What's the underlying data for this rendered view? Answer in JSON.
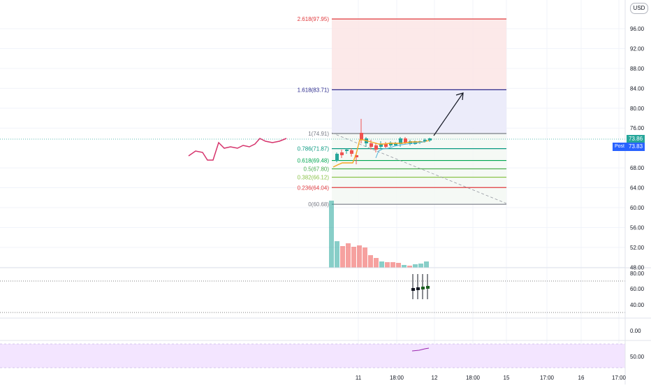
{
  "currency_button": "USD",
  "price_axis": {
    "ticks": [
      {
        "label": "96.00",
        "price": 96
      },
      {
        "label": "92.00",
        "price": 92
      },
      {
        "label": "88.00",
        "price": 88
      },
      {
        "label": "84.00",
        "price": 84
      },
      {
        "label": "80.00",
        "price": 80
      },
      {
        "label": "76.00",
        "price": 76
      },
      {
        "label": "68.00",
        "price": 68
      },
      {
        "label": "64.00",
        "price": 64
      },
      {
        "label": "60.00",
        "price": 60
      },
      {
        "label": "56.00",
        "price": 56
      },
      {
        "label": "52.00",
        "price": 52
      },
      {
        "label": "48.00",
        "price": 48
      }
    ],
    "last_price": "73.86",
    "post_price": "73.83",
    "post_label": "Post",
    "last_color": "#26a69a",
    "post_color": "#2962ff"
  },
  "fib_levels": [
    {
      "label": "2.618(97.95)",
      "price": 97.95,
      "color": "#e03a3e"
    },
    {
      "label": "1.618(83.71)",
      "price": 83.71,
      "color": "#2b2a8c"
    },
    {
      "label": "1(74.91)",
      "price": 74.91,
      "color": "#787b86"
    },
    {
      "label": "0.786(71.87)",
      "price": 71.87,
      "color": "#089981"
    },
    {
      "label": "0.618(69.48)",
      "price": 69.48,
      "color": "#00a650"
    },
    {
      "label": "0.5(67.80)",
      "price": 67.8,
      "color": "#4caf50"
    },
    {
      "label": "0.382(66.12)",
      "price": 66.12,
      "color": "#8bc34a"
    },
    {
      "label": "0.236(64.04)",
      "price": 64.04,
      "color": "#e03a3e"
    },
    {
      "label": "0(60.68)",
      "price": 60.68,
      "color": "#787b86"
    }
  ],
  "time_axis": [
    "11",
    "18:00",
    "12",
    "18:00",
    "15",
    "17:00",
    "16",
    "17:00"
  ],
  "oscillator_1_ticks": [
    "80.00",
    "60.00",
    "40.00"
  ],
  "oscillator_2_ticks": [
    "0.00"
  ],
  "oscillator_3_ticks": [
    "50.00"
  ],
  "colors": {
    "up": "#26a69a",
    "down": "#ef5350",
    "pink_line": "#d6336c",
    "orange_line": "#f5a623",
    "rsi_band": "#f3e5ff",
    "ext_zone_red": "#fbe5e5",
    "ext_zone_blue": "#eaeaf9"
  }
}
